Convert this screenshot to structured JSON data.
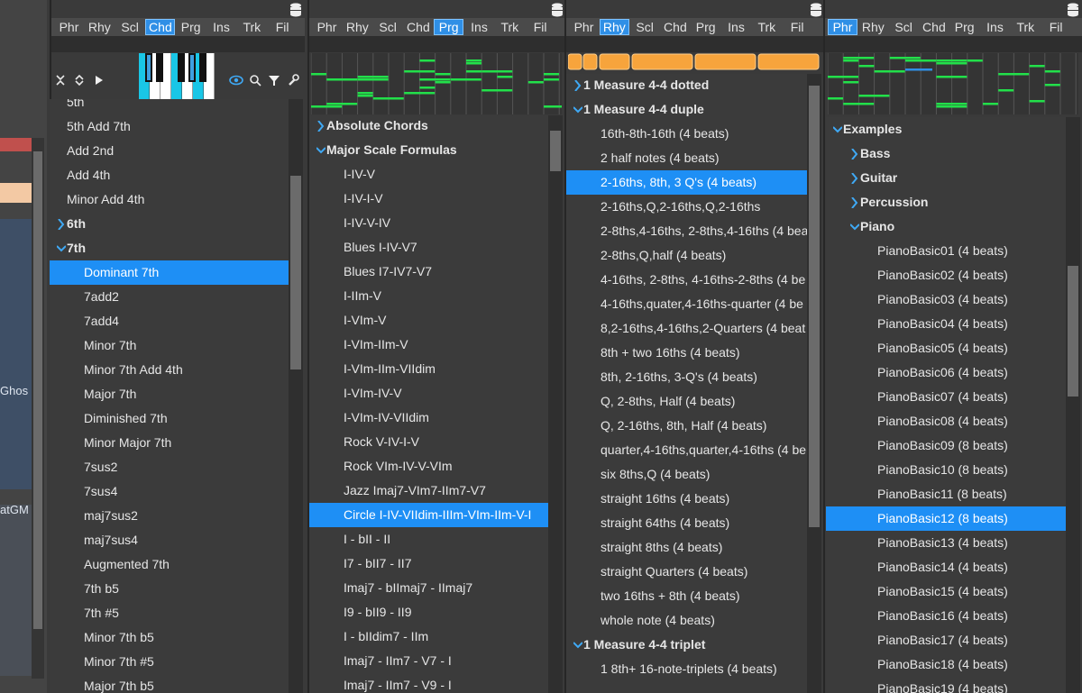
{
  "left_strip": {
    "labels": [
      "Ghos",
      "atGM"
    ]
  },
  "panels": [
    {
      "tabs": [
        "Phr",
        "Rhy",
        "Scl",
        "Chd",
        "Prg",
        "Ins",
        "Trk",
        "Fil"
      ],
      "active_tab": 3,
      "preview": "keyboard",
      "items": [
        {
          "label": "5th",
          "level": 0
        },
        {
          "label": "5th Add 7th",
          "level": 0
        },
        {
          "label": "Add 2nd",
          "level": 0
        },
        {
          "label": "Add 4th",
          "level": 0
        },
        {
          "label": "Minor Add 4th",
          "level": 0
        },
        {
          "label": "6th",
          "level": 0,
          "group": "closed"
        },
        {
          "label": "7th",
          "level": 0,
          "group": "open"
        },
        {
          "label": "Dominant 7th",
          "level": 1,
          "selected": true
        },
        {
          "label": "7add2",
          "level": 1
        },
        {
          "label": "7add4",
          "level": 1
        },
        {
          "label": "Minor 7th",
          "level": 1
        },
        {
          "label": "Minor 7th Add 4th",
          "level": 1
        },
        {
          "label": "Major 7th",
          "level": 1
        },
        {
          "label": "Diminished 7th",
          "level": 1
        },
        {
          "label": "Minor Major 7th",
          "level": 1
        },
        {
          "label": "7sus2",
          "level": 1
        },
        {
          "label": "7sus4",
          "level": 1
        },
        {
          "label": "maj7sus2",
          "level": 1
        },
        {
          "label": "maj7sus4",
          "level": 1
        },
        {
          "label": "Augmented 7th",
          "level": 1
        },
        {
          "label": "7th b5",
          "level": 1
        },
        {
          "label": "7th #5",
          "level": 1
        },
        {
          "label": "Minor 7th b5",
          "level": 1
        },
        {
          "label": "Minor 7th #5",
          "level": 1
        },
        {
          "label": "Major 7th b5",
          "level": 1
        }
      ]
    },
    {
      "tabs": [
        "Phr",
        "Rhy",
        "Scl",
        "Chd",
        "Prg",
        "Ins",
        "Trk",
        "Fil"
      ],
      "active_tab": 4,
      "preview": "notes",
      "items": [
        {
          "label": "Absolute Chords",
          "level": 0,
          "group": "closed"
        },
        {
          "label": "Major Scale Formulas",
          "level": 0,
          "group": "open"
        },
        {
          "label": "I-IV-V",
          "level": 1
        },
        {
          "label": "I-IV-I-V",
          "level": 1
        },
        {
          "label": "I-IV-V-IV",
          "level": 1
        },
        {
          "label": "Blues I-IV-V7",
          "level": 1
        },
        {
          "label": "Blues I7-IV7-V7",
          "level": 1
        },
        {
          "label": "I-IIm-V",
          "level": 1
        },
        {
          "label": "I-VIm-V",
          "level": 1
        },
        {
          "label": "I-VIm-IIm-V",
          "level": 1
        },
        {
          "label": "I-VIm-IIm-VIIdim",
          "level": 1
        },
        {
          "label": "I-VIm-IV-V",
          "level": 1
        },
        {
          "label": "I-VIm-IV-VIIdim",
          "level": 1
        },
        {
          "label": "Rock V-IV-I-V",
          "level": 1
        },
        {
          "label": "Rock VIm-IV-V-VIm",
          "level": 1
        },
        {
          "label": "Jazz Imaj7-VIm7-IIm7-V7",
          "level": 1
        },
        {
          "label": "Circle I-IV-VIIdim-IIIm-VIm-IIm-V-I",
          "level": 1,
          "selected": true
        },
        {
          "label": "I - bII - II",
          "level": 1
        },
        {
          "label": "I7 - bII7 - II7",
          "level": 1
        },
        {
          "label": "Imaj7 - bIImaj7 - IImaj7",
          "level": 1
        },
        {
          "label": "I9 - bII9 - II9",
          "level": 1
        },
        {
          "label": "I - bIIdim7 - IIm",
          "level": 1
        },
        {
          "label": "Imaj7 - IIm7 - V7 - I",
          "level": 1
        },
        {
          "label": "Imaj7 - IIm7 - V9 - I",
          "level": 1
        }
      ]
    },
    {
      "tabs": [
        "Phr",
        "Rhy",
        "Scl",
        "Chd",
        "Prg",
        "Ins",
        "Trk",
        "Fil"
      ],
      "active_tab": 1,
      "preview": "rhythm",
      "items": [
        {
          "label": "1 Measure 4-4 dotted",
          "level": 0,
          "group": "closed"
        },
        {
          "label": "1 Measure 4-4 duple",
          "level": 0,
          "group": "open"
        },
        {
          "label": "16th-8th-16th (4 beats)",
          "level": 1
        },
        {
          "label": "2 half notes (4 beats)",
          "level": 1
        },
        {
          "label": "2-16ths, 8th, 3 Q's (4 beats)",
          "level": 1,
          "selected": true
        },
        {
          "label": "2-16ths,Q,2-16ths,Q,2-16ths",
          "level": 1
        },
        {
          "label": "2-8ths,4-16ths, 2-8ths,4-16ths (4 bea",
          "level": 1
        },
        {
          "label": "2-8ths,Q,half (4 beats)",
          "level": 1
        },
        {
          "label": "4-16ths, 2-8ths, 4-16ths-2-8ths (4 be",
          "level": 1
        },
        {
          "label": "4-16ths,quater,4-16ths-quarter (4 be",
          "level": 1
        },
        {
          "label": "8,2-16ths,4-16ths,2-Quarters (4 beat",
          "level": 1
        },
        {
          "label": "8th + two 16ths (4 beats)",
          "level": 1
        },
        {
          "label": "8th, 2-16ths, 3-Q's (4 beats)",
          "level": 1
        },
        {
          "label": "Q,  2-8ths, Half (4 beats)",
          "level": 1
        },
        {
          "label": "Q, 2-16ths, 8th, Half (4 beats)",
          "level": 1
        },
        {
          "label": "quarter,4-16ths,quarter,4-16ths (4 be",
          "level": 1
        },
        {
          "label": "six 8ths,Q (4 beats)",
          "level": 1
        },
        {
          "label": "straight 16ths (4 beats)",
          "level": 1
        },
        {
          "label": "straight 64ths (4 beats)",
          "level": 1
        },
        {
          "label": "straight 8ths (4 beats)",
          "level": 1
        },
        {
          "label": "straight Quarters (4 beats)",
          "level": 1
        },
        {
          "label": "two 16ths + 8th (4 beats)",
          "level": 1
        },
        {
          "label": "whole note (4 beats)",
          "level": 1
        },
        {
          "label": "1 Measure 4-4 triplet",
          "level": 0,
          "group": "open"
        },
        {
          "label": "1 8th+ 16-note-triplets (4 beats)",
          "level": 1
        }
      ]
    },
    {
      "tabs": [
        "Phr",
        "Rhy",
        "Scl",
        "Chd",
        "Prg",
        "Ins",
        "Trk",
        "Fil"
      ],
      "active_tab": 0,
      "preview": "phrase",
      "items": [
        {
          "label": "Examples",
          "level": 0,
          "group": "open"
        },
        {
          "label": "Bass",
          "level": 1,
          "group": "closed"
        },
        {
          "label": "Guitar",
          "level": 1,
          "group": "closed"
        },
        {
          "label": "Percussion",
          "level": 1,
          "group": "closed"
        },
        {
          "label": "Piano",
          "level": 1,
          "group": "open"
        },
        {
          "label": "PianoBasic01 (4 beats)",
          "level": 2
        },
        {
          "label": "PianoBasic02 (4 beats)",
          "level": 2
        },
        {
          "label": "PianoBasic03 (4 beats)",
          "level": 2
        },
        {
          "label": "PianoBasic04 (4 beats)",
          "level": 2
        },
        {
          "label": "PianoBasic05 (4 beats)",
          "level": 2
        },
        {
          "label": "PianoBasic06 (4 beats)",
          "level": 2
        },
        {
          "label": "PianoBasic07 (4 beats)",
          "level": 2
        },
        {
          "label": "PianoBasic08 (4 beats)",
          "level": 2
        },
        {
          "label": "PianoBasic09 (8 beats)",
          "level": 2
        },
        {
          "label": "PianoBasic10 (8 beats)",
          "level": 2
        },
        {
          "label": "PianoBasic11 (8 beats)",
          "level": 2
        },
        {
          "label": "PianoBasic12 (8 beats)",
          "level": 2,
          "selected": true
        },
        {
          "label": "PianoBasic13 (4 beats)",
          "level": 2
        },
        {
          "label": "PianoBasic14 (4 beats)",
          "level": 2
        },
        {
          "label": "PianoBasic15 (4 beats)",
          "level": 2
        },
        {
          "label": "PianoBasic16 (4 beats)",
          "level": 2
        },
        {
          "label": "PianoBasic17 (4 beats)",
          "level": 2
        },
        {
          "label": "PianoBasic18 (4 beats)",
          "level": 2
        },
        {
          "label": "PianoBasic19 (4 beats)",
          "level": 2
        }
      ]
    }
  ]
}
